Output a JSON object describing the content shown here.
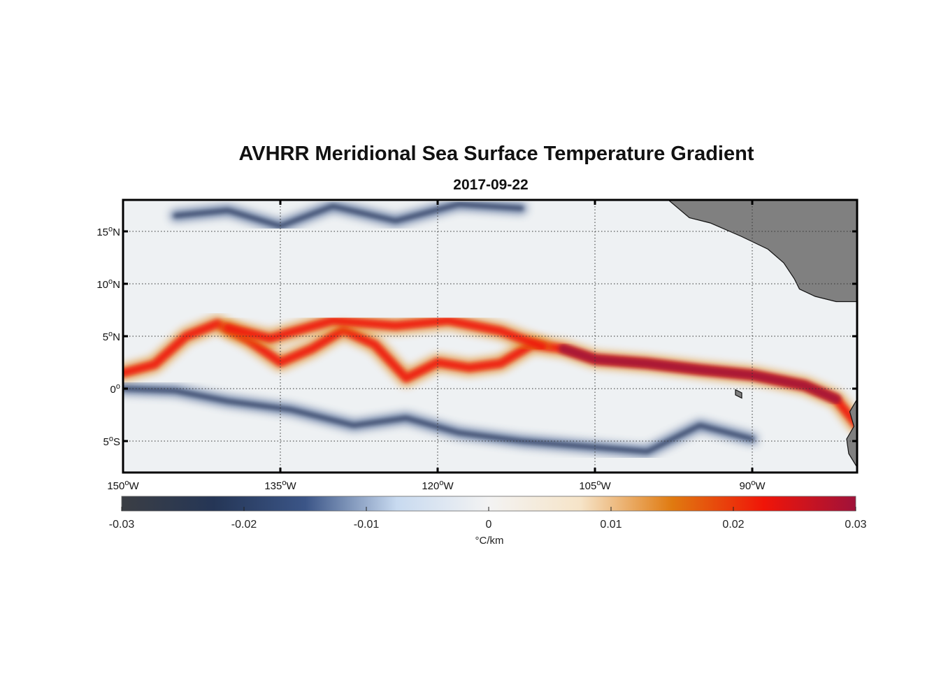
{
  "chart_data": {
    "type": "heatmap",
    "title": "AVHRR Meridional Sea Surface Temperature Gradient",
    "subtitle": "2017-09-22",
    "variable": "meridional SST gradient",
    "units_label": "°C/km",
    "x_range": [
      -150,
      -80
    ],
    "y_range": [
      -8,
      18
    ],
    "x_ticks": [
      {
        "value": -150,
        "label": "150",
        "hemi": "W"
      },
      {
        "value": -135,
        "label": "135",
        "hemi": "W"
      },
      {
        "value": -120,
        "label": "120",
        "hemi": "W"
      },
      {
        "value": -105,
        "label": "105",
        "hemi": "W"
      },
      {
        "value": -90,
        "label": "90",
        "hemi": "W"
      }
    ],
    "y_ticks": [
      {
        "value": 15,
        "label": "15",
        "hemi": "N"
      },
      {
        "value": 10,
        "label": "10",
        "hemi": "N"
      },
      {
        "value": 5,
        "label": "5",
        "hemi": "N"
      },
      {
        "value": 0,
        "label": "0",
        "hemi": ""
      },
      {
        "value": -5,
        "label": "5",
        "hemi": "S"
      }
    ],
    "grid": true,
    "colorbar": {
      "range": [
        -0.03,
        0.03
      ],
      "ticks": [
        {
          "value": -0.03,
          "label": "-0.03"
        },
        {
          "value": -0.02,
          "label": "-0.02"
        },
        {
          "value": -0.01,
          "label": "-0.01"
        },
        {
          "value": 0,
          "label": "0"
        },
        {
          "value": 0.01,
          "label": "0.01"
        },
        {
          "value": 0.02,
          "label": "0.02"
        },
        {
          "value": 0.03,
          "label": "0.03"
        }
      ],
      "colors": [
        "#3b3e44",
        "#253656",
        "#3b5587",
        "#c8daf0",
        "#f3f3f3",
        "#f6e4c8",
        "#e07a10",
        "#f01508",
        "#a0123a"
      ]
    },
    "features": [
      {
        "name": "equatorial-front",
        "sign": "positive",
        "path": [
          [
            -150,
            1.5
          ],
          [
            -147,
            2.3
          ],
          [
            -144,
            5.0
          ],
          [
            -141,
            6.2
          ],
          [
            -138,
            4.6
          ],
          [
            -135,
            2.5
          ],
          [
            -132,
            3.8
          ],
          [
            -129,
            5.6
          ],
          [
            -126,
            4.2
          ],
          [
            -123,
            1.0
          ],
          [
            -120,
            2.5
          ],
          [
            -117,
            2.0
          ],
          [
            -114,
            2.4
          ],
          [
            -111,
            4.2
          ],
          [
            -108,
            3.8
          ],
          [
            -105,
            2.8
          ],
          [
            -100,
            2.4
          ],
          [
            -95,
            1.8
          ],
          [
            -90,
            1.3
          ],
          [
            -85,
            0.3
          ],
          [
            -82,
            -1.0
          ],
          [
            -80,
            -3.5
          ]
        ]
      },
      {
        "name": "tiw-crest-band",
        "sign": "positive",
        "path": [
          [
            -140,
            5.8
          ],
          [
            -136,
            4.8
          ],
          [
            -130,
            6.5
          ],
          [
            -124,
            6.0
          ],
          [
            -119,
            6.5
          ],
          [
            -114,
            5.5
          ],
          [
            -110,
            4.0
          ]
        ]
      },
      {
        "name": "south-equatorial-cold-band",
        "sign": "negative",
        "path": [
          [
            -150,
            0.0
          ],
          [
            -145,
            -0.2
          ],
          [
            -140,
            -1.2
          ],
          [
            -134,
            -2.0
          ],
          [
            -128,
            -3.5
          ],
          [
            -123,
            -2.8
          ],
          [
            -118,
            -4.2
          ],
          [
            -112,
            -5.0
          ],
          [
            -106,
            -5.5
          ],
          [
            -100,
            -6.0
          ],
          [
            -95,
            -3.5
          ],
          [
            -90,
            -4.8
          ]
        ]
      },
      {
        "name": "north-cold-eddies",
        "sign": "negative",
        "path": [
          [
            -145,
            16.5
          ],
          [
            -140,
            17.0
          ],
          [
            -135,
            15.5
          ],
          [
            -130,
            17.4
          ],
          [
            -124,
            16.0
          ],
          [
            -118,
            17.6
          ],
          [
            -112,
            17.2
          ]
        ]
      }
    ],
    "land": [
      {
        "name": "central-america",
        "path": [
          [
            -98,
            18
          ],
          [
            -96,
            16.3
          ],
          [
            -94,
            15.8
          ],
          [
            -91,
            14.5
          ],
          [
            -88.5,
            13.3
          ],
          [
            -87,
            12.0
          ],
          [
            -86,
            10.5
          ],
          [
            -85.5,
            9.5
          ],
          [
            -84,
            8.8
          ],
          [
            -82,
            8.3
          ],
          [
            -80,
            8.3
          ],
          [
            -80,
            18
          ]
        ]
      },
      {
        "name": "south-america-coast",
        "path": [
          [
            -80,
            -1
          ],
          [
            -80.7,
            -2.2
          ],
          [
            -80.3,
            -3.6
          ],
          [
            -81,
            -4.8
          ],
          [
            -80.8,
            -6.2
          ],
          [
            -80,
            -7.5
          ],
          [
            -80,
            -8
          ]
        ]
      },
      {
        "name": "galapagos",
        "path": [
          [
            -91.6,
            -0.1
          ],
          [
            -91.0,
            -0.4
          ],
          [
            -91.0,
            -0.9
          ],
          [
            -91.6,
            -0.6
          ]
        ]
      }
    ]
  }
}
